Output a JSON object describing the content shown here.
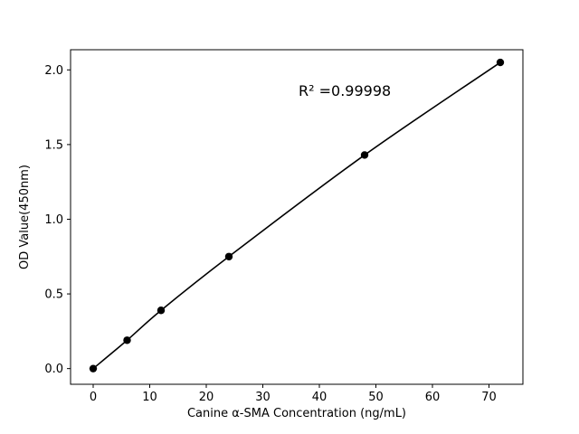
{
  "chart_data": {
    "type": "line",
    "title": "",
    "xlabel": "Canine α-SMA Concentration (ng/mL)",
    "ylabel": "OD Value(450nm)",
    "annotation": "R² =0.99998",
    "x": [
      0,
      6,
      12,
      24,
      48,
      72
    ],
    "y": [
      0.0,
      0.19,
      0.39,
      0.75,
      1.43,
      2.05
    ],
    "xlim": [
      -4,
      76
    ],
    "ylim": [
      -0.105,
      2.135
    ],
    "xticks": [
      "0",
      "10",
      "20",
      "30",
      "40",
      "50",
      "60",
      "70"
    ],
    "yticks": [
      "0.0",
      "0.5",
      "1.0",
      "1.5",
      "2.0"
    ],
    "grid": false,
    "legend_position": "none",
    "line_color": "#000000",
    "marker_color": "#000000",
    "background_color": "#ffffff"
  }
}
